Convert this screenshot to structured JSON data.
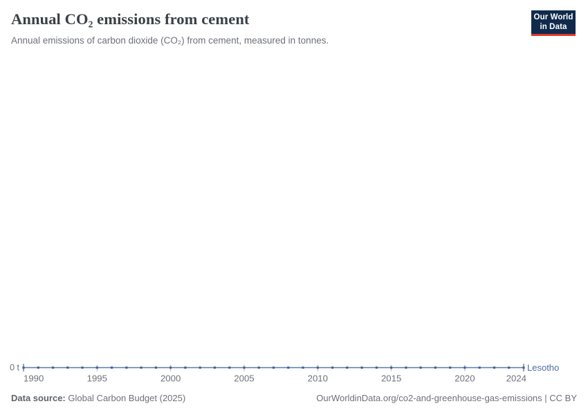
{
  "header": {
    "title": "Annual CO₂ emissions from cement",
    "subtitle": "Annual emissions of carbon dioxide (CO₂) from cement, measured in tonnes.",
    "logo": {
      "line1": "Our World",
      "line2": "in Data"
    }
  },
  "chart_data": {
    "type": "line",
    "title": "Annual CO₂ emissions from cement",
    "entity": "Lesotho",
    "x": [
      1990,
      1991,
      1992,
      1993,
      1994,
      1995,
      1996,
      1997,
      1998,
      1999,
      2000,
      2001,
      2002,
      2003,
      2004,
      2005,
      2006,
      2007,
      2008,
      2009,
      2010,
      2011,
      2012,
      2013,
      2014,
      2015,
      2016,
      2017,
      2018,
      2019,
      2020,
      2021,
      2022,
      2023,
      2024
    ],
    "series": [
      {
        "name": "Lesotho",
        "values": [
          0,
          0,
          0,
          0,
          0,
          0,
          0,
          0,
          0,
          0,
          0,
          0,
          0,
          0,
          0,
          0,
          0,
          0,
          0,
          0,
          0,
          0,
          0,
          0,
          0,
          0,
          0,
          0,
          0,
          0,
          0,
          0,
          0,
          0,
          0
        ]
      }
    ],
    "x_ticks": [
      1990,
      1995,
      2000,
      2005,
      2010,
      2015,
      2020,
      2024
    ],
    "y_axis_zero_label": "0 t",
    "xlim": [
      1990,
      2024
    ],
    "ylim": [
      0,
      0
    ],
    "unit": "t",
    "grid": false,
    "legend_position": "end-of-line"
  },
  "footer": {
    "datasource_label": "Data source:",
    "datasource_value": " Global Carbon Budget (2025)",
    "url_note": "OurWorldinData.org/co2-and-greenhouse-gas-emissions | CC BY"
  },
  "colors": {
    "line": "#5b79ad",
    "marker": "#44639c",
    "entity_label": "#4c6fa5",
    "tick": "#a3a7ad",
    "endpoint_tick": "#46618f",
    "axis_text": "#6d7079",
    "title_text": "#394049",
    "logo_bg": "#102a4c",
    "logo_red": "#dc3a2c"
  }
}
